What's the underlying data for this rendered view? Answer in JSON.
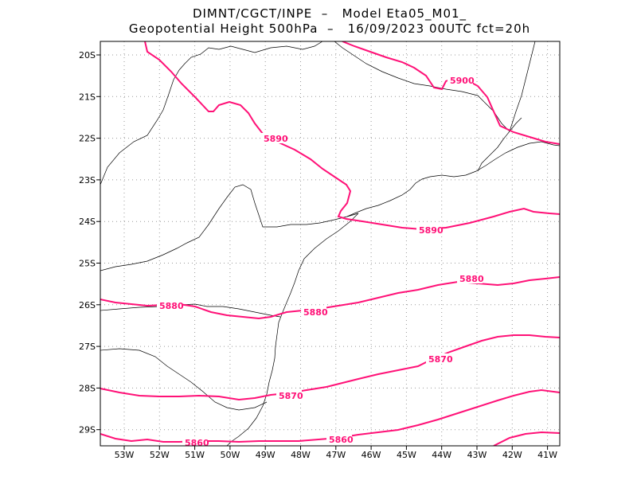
{
  "title": {
    "line1": "DIMNT/CGCT/INPE  –   Model Eta05_M01_",
    "line2": "Geopotential Height 500hPa  –   16/09/2023 00UTC fct=20h"
  },
  "axes": {
    "lat_labels": [
      "20S",
      "21S",
      "22S",
      "23S",
      "24S",
      "25S",
      "26S",
      "27S",
      "28S",
      "29S"
    ],
    "lon_labels": [
      "53W",
      "52W",
      "51W",
      "50W",
      "49W",
      "48W",
      "47W",
      "46W",
      "45W",
      "44W",
      "43W",
      "42W",
      "41W"
    ],
    "lat_values": [
      -20,
      -21,
      -22,
      -23,
      -24,
      -25,
      -26,
      -27,
      -28,
      -29
    ],
    "lon_values": [
      -53,
      -52,
      -51,
      -50,
      -49,
      -48,
      -47,
      -46,
      -45,
      -44,
      -43,
      -42,
      -41
    ],
    "grid": "dotted",
    "contour_color": "#ff1177",
    "coast_color": "#000000"
  },
  "chart_data": {
    "type": "contour",
    "variable": "Geopotential Height 500hPa",
    "contour_labels": [
      "5900",
      "5890",
      "5890",
      "5880",
      "5880",
      "5880",
      "5870",
      "5870",
      "5860",
      "5860"
    ],
    "levels": [
      5860,
      5870,
      5880,
      5890,
      5900
    ]
  }
}
